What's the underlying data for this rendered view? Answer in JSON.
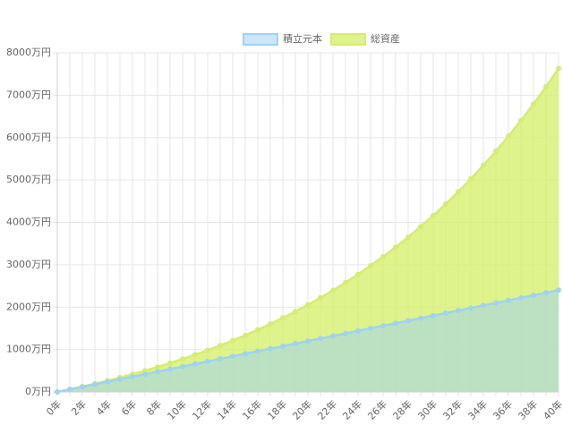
{
  "chart_data": {
    "type": "area",
    "categories": [
      "0年",
      null,
      "2年",
      null,
      "4年",
      null,
      "6年",
      null,
      "8年",
      null,
      "10年",
      null,
      "12年",
      null,
      "14年",
      null,
      "16年",
      null,
      "18年",
      null,
      "20年",
      null,
      "22年",
      null,
      "24年",
      null,
      "26年",
      null,
      "28年",
      null,
      "30年",
      null,
      "32年",
      null,
      "34年",
      null,
      "36年",
      null,
      "38年",
      null,
      "40年"
    ],
    "series": [
      {
        "name": "積立元本",
        "color": "#9fd3ee",
        "fill": "rgba(160,210,240,0.55)",
        "values": [
          0,
          60,
          120,
          180,
          240,
          300,
          360,
          420,
          480,
          540,
          600,
          660,
          720,
          780,
          840,
          900,
          960,
          1020,
          1080,
          1140,
          1200,
          1260,
          1320,
          1380,
          1440,
          1500,
          1560,
          1620,
          1680,
          1740,
          1800,
          1860,
          1920,
          1980,
          2040,
          2100,
          2160,
          2220,
          2280,
          2340,
          2400
        ]
      },
      {
        "name": "総資産",
        "color": "#d6ec72",
        "fill": "rgba(214,240,110,0.8)",
        "values": [
          0,
          61,
          126,
          194,
          265,
          340,
          419,
          502,
          589,
          680,
          776,
          878,
          984,
          1096,
          1213,
          1336,
          1466,
          1603,
          1746,
          1897,
          2055,
          2222,
          2397,
          2581,
          2774,
          2978,
          3191,
          3416,
          3652,
          3900,
          4161,
          4436,
          4724,
          5027,
          5346,
          5680,
          6033,
          6403,
          6791,
          7200,
          7630
        ]
      }
    ],
    "ylim": [
      0,
      8000
    ],
    "yticks": [
      {
        "value": 0,
        "label": "0万円"
      },
      {
        "value": 1000,
        "label": "1000万円"
      },
      {
        "value": 2000,
        "label": "2000万円"
      },
      {
        "value": 3000,
        "label": "3000万円"
      },
      {
        "value": 4000,
        "label": "4000万円"
      },
      {
        "value": 5000,
        "label": "5000万円"
      },
      {
        "value": 6000,
        "label": "6000万円"
      },
      {
        "value": 7000,
        "label": "7000万円"
      },
      {
        "value": 8000,
        "label": "8000万円"
      }
    ],
    "grid": true
  }
}
